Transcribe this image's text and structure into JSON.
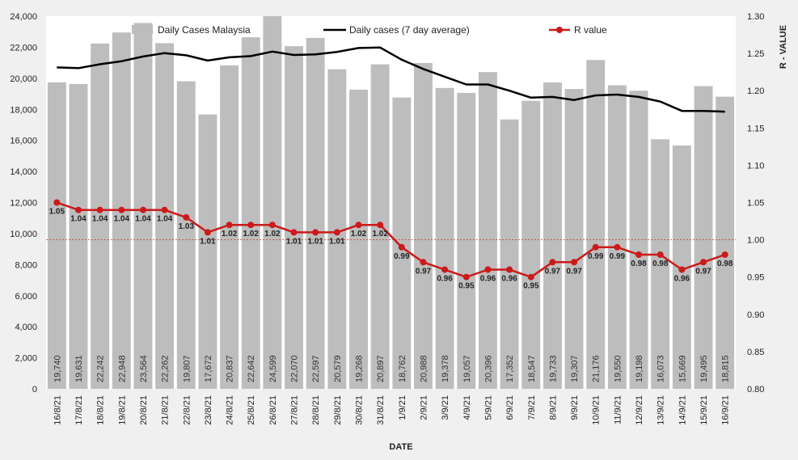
{
  "chart_data": {
    "type": "bar",
    "title": "",
    "xlabel": "DATE",
    "ylabel": "",
    "y2label": "R - VALUE",
    "ylim": [
      0,
      24000
    ],
    "y2lim": [
      0.8,
      1.3
    ],
    "yticks": [
      "0",
      "2,000",
      "4,000",
      "6,000",
      "8,000",
      "10,000",
      "12,000",
      "14,000",
      "16,000",
      "18,000",
      "20,000",
      "22,000",
      "24,000"
    ],
    "y2ticks": [
      "0.80",
      "0.85",
      "0.90",
      "0.95",
      "1.00",
      "1.05",
      "1.10",
      "1.15",
      "1.20",
      "1.25",
      "1.30"
    ],
    "reference_line": 1.0,
    "legend_position": "top",
    "categories": [
      "16/8/21",
      "17/8/21",
      "18/8/21",
      "19/8/21",
      "20/8/21",
      "21/8/21",
      "22/8/21",
      "23/8/21",
      "24/8/21",
      "25/8/21",
      "26/8/21",
      "27/8/21",
      "28/8/21",
      "29/8/21",
      "30/8/21",
      "31/8/21",
      "1/9/21",
      "2/9/21",
      "3/9/21",
      "4/9/21",
      "5/9/21",
      "6/9/21",
      "7/9/21",
      "8/9/21",
      "9/9/21",
      "10/9/21",
      "11/9/21",
      "12/9/21",
      "13/9/21",
      "14/9/21",
      "15/9/21",
      "16/9/21"
    ],
    "series": [
      {
        "name": "Daily Cases Malaysia",
        "type": "bar",
        "color": "#bdbdbd",
        "values": [
          19740,
          19631,
          22242,
          22948,
          23564,
          22262,
          19807,
          17672,
          20837,
          22642,
          24599,
          22070,
          22597,
          20579,
          19268,
          20897,
          18762,
          20988,
          19378,
          19057,
          20396,
          17352,
          18547,
          19733,
          19307,
          21176,
          19550,
          19198,
          16073,
          15669,
          19495,
          18815
        ],
        "labels": [
          "19,740",
          "19,631",
          "22,242",
          "22,948",
          "23,564",
          "22,262",
          "19,807",
          "17,672",
          "20,837",
          "22,642",
          "24,599",
          "22,070",
          "22,597",
          "20,579",
          "19,268",
          "20,897",
          "18,762",
          "20,988",
          "19,378",
          "19,057",
          "20,396",
          "17,352",
          "18,547",
          "19,733",
          "19,307",
          "21,176",
          "19,550",
          "19,198",
          "16,073",
          "15,669",
          "19,495",
          "18,815"
        ]
      },
      {
        "name": "Daily cases (7 day average)",
        "type": "line",
        "color": "#000000",
        "values": [
          20700,
          20650,
          20900,
          21100,
          21400,
          21620,
          21480,
          21140,
          21350,
          21430,
          21720,
          21500,
          21540,
          21700,
          21950,
          21980,
          21200,
          20600,
          20100,
          19600,
          19600,
          19200,
          18750,
          18800,
          18600,
          18900,
          18950,
          18800,
          18500,
          17900,
          17900,
          17850
        ]
      },
      {
        "name": "R value",
        "type": "line",
        "axis": "right",
        "color": "#cc1a1a",
        "values": [
          1.05,
          1.04,
          1.04,
          1.04,
          1.04,
          1.04,
          1.03,
          1.01,
          1.02,
          1.02,
          1.02,
          1.01,
          1.01,
          1.01,
          1.02,
          1.02,
          0.99,
          0.97,
          0.96,
          0.95,
          0.96,
          0.96,
          0.95,
          0.97,
          0.97,
          0.99,
          0.99,
          0.98,
          0.98,
          0.96,
          0.97,
          0.98
        ],
        "labels": [
          "1.05",
          "1.04",
          "1.04",
          "1.04",
          "1.04",
          "1.04",
          "1.03",
          "1.01",
          "1.02",
          "1.02",
          "1.02",
          "1.01",
          "1.01",
          "1.01",
          "1.02",
          "1.02",
          "0.99",
          "0.97",
          "0.96",
          "0.95",
          "0.96",
          "0.96",
          "0.95",
          "0.97",
          "0.97",
          "0.99",
          "0.99",
          "0.98",
          "0.98",
          "0.96",
          "0.97",
          "0.98"
        ]
      }
    ]
  }
}
